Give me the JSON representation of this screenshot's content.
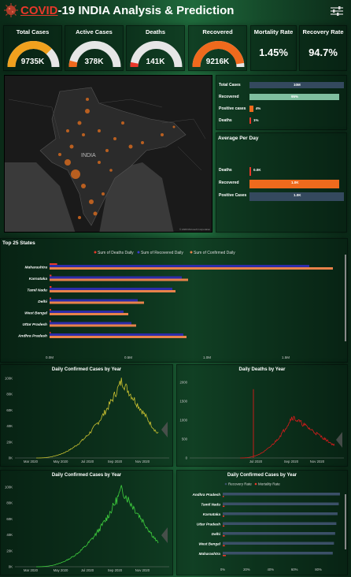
{
  "header": {
    "title_accent": "COVID",
    "title_rest": "-19 INDIA Analysis & Prediction"
  },
  "kpis": [
    {
      "label": "Total Cases",
      "value": "9735K",
      "fill": 0.75,
      "color": "#f0a11e"
    },
    {
      "label": "Active Cases",
      "value": "378K",
      "fill": 0.08,
      "color": "#ef6a1d"
    },
    {
      "label": "Deaths",
      "value": "141K",
      "fill": 0.06,
      "color": "#e8382a"
    },
    {
      "label": "Recovered",
      "value": "9216K",
      "fill": 0.95,
      "color": "#ef6a1d"
    }
  ],
  "rates": [
    {
      "label": "Mortality Rate",
      "value": "1.45%"
    },
    {
      "label": "Recovery Rate",
      "value": "94.7%"
    }
  ],
  "map": {
    "country_label": "INDIA",
    "credit": "© 2020 Microsoft Corporation"
  },
  "summary_bars": {
    "items": [
      {
        "label": "Total Cases",
        "value_label": "10M",
        "fraction": 1.0,
        "color": "#34495e"
      },
      {
        "label": "Recovered",
        "value_label": "95%",
        "fraction": 0.95,
        "color": "#7fbf9f"
      },
      {
        "label": "Positive cases",
        "value_label": "4%",
        "fraction": 0.04,
        "color": "#ef6a1d"
      },
      {
        "label": "Deaths",
        "value_label": "1%",
        "fraction": 0.01,
        "color": "#e8382a"
      }
    ]
  },
  "average_per_day": {
    "title": "Average Per Day",
    "items": [
      {
        "label": "Deaths",
        "value_label": "0.0K",
        "fraction": 0.015,
        "color": "#e8382a"
      },
      {
        "label": "Recovered",
        "value_label": "1.0K",
        "fraction": 0.95,
        "color": "#ef6a1d"
      },
      {
        "label": "Positive Cases",
        "value_label": "1.0K",
        "fraction": 1.0,
        "color": "#34495e"
      }
    ]
  },
  "top_states": {
    "title": "Top 25 States",
    "legend": [
      "Sum of Deaths Daily",
      "Sum of Recovered Daily",
      "Sum of Confirmed Daily"
    ],
    "legend_colors": [
      "#e8382a",
      "#3a3ad0",
      "#e8824a"
    ],
    "axis_ticks": [
      "0.0M",
      "0.5M",
      "1.0M",
      "1.5M"
    ]
  },
  "colors": {
    "deaths": "#e8382a",
    "recovered": "#2c2ca8",
    "confirmed": "#e8824a",
    "green_line": "#3ecf3e",
    "yellow_line": "#c8c030",
    "red_line": "#d81b1b",
    "bar_blue": "#3b5068"
  },
  "chart_data": [
    {
      "type": "bar",
      "title": "Top 25 States",
      "categories": [
        "Maharashtra",
        "Karnataka",
        "Tamil Nadu",
        "Delhi",
        "West Bengal",
        "Uttar Pradesh",
        "Andhra Pradesh"
      ],
      "series": [
        {
          "name": "Sum of Deaths Daily",
          "values": [
            0.048,
            0.012,
            0.012,
            0.01,
            0.009,
            0.008,
            0.007
          ]
        },
        {
          "name": "Sum of Recovered Daily",
          "values": [
            1.65,
            0.84,
            0.78,
            0.56,
            0.47,
            0.52,
            0.85
          ]
        },
        {
          "name": "Sum of Confirmed Daily",
          "values": [
            1.8,
            0.88,
            0.8,
            0.6,
            0.5,
            0.55,
            0.87
          ]
        }
      ],
      "xlim": [
        0,
        1.85
      ]
    },
    {
      "type": "line",
      "title": "Daily Confirmed Cases by Year",
      "x_ticks": [
        "Mar 2020",
        "May 2020",
        "Jul 2020",
        "Sep 2020",
        "Nov 2020"
      ],
      "y_ticks": [
        "0K",
        "20K",
        "40K",
        "60K",
        "80K",
        "100K"
      ],
      "ylim": [
        0,
        100000
      ],
      "peak": 97000,
      "peak_fraction": 0.7
    },
    {
      "type": "line",
      "title": "Daily Deaths by Year",
      "x_ticks": [
        "Jul 2020",
        "Sep 2020",
        "Nov 2020"
      ],
      "y_ticks": [
        "0",
        "500",
        "1000",
        "1500",
        "2000"
      ],
      "ylim": [
        0,
        2200
      ],
      "spike": 2000,
      "peak": 1200
    },
    {
      "type": "line",
      "title": "Daily Confirmed Cases by Year",
      "x_ticks": [
        "Mar 2020",
        "May 2020",
        "Jul 2020",
        "Sep 2020",
        "Nov 2020"
      ],
      "y_ticks": [
        "0K",
        "20K",
        "40K",
        "60K",
        "80K",
        "100K"
      ],
      "ylim": [
        0,
        100000
      ],
      "peak": 97000,
      "peak_fraction": 0.7
    },
    {
      "type": "bar",
      "title": "Daily Confirmed Cases by Year",
      "legend": [
        "Recovery Rate",
        "Mortality Rate"
      ],
      "categories": [
        "Andhra Pradesh",
        "Tamil Nadu",
        "Karnataka",
        "Uttar Pradesh",
        "Delhi",
        "West Bengal",
        "Maharashtra"
      ],
      "series": [
        {
          "name": "Recovery Rate",
          "values": [
            98,
            97,
            96,
            95,
            94,
            93,
            92
          ]
        },
        {
          "name": "Mortality Rate",
          "values": [
            1,
            1.5,
            1.3,
            1.4,
            1.7,
            1.8,
            2.6
          ]
        }
      ],
      "x_ticks": [
        "0%",
        "20%",
        "40%",
        "60%",
        "80%"
      ],
      "xlim": [
        0,
        100
      ]
    }
  ]
}
